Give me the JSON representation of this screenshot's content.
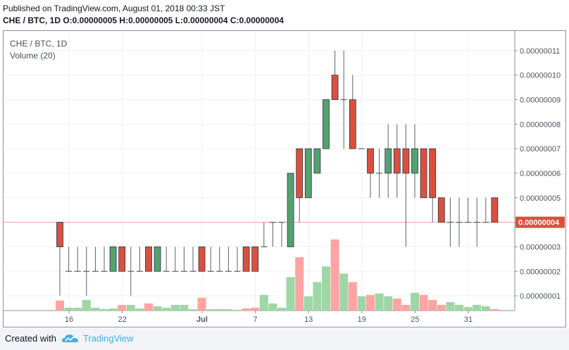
{
  "header": {
    "published": "Published on TradingView.com, August 01, 2018 00:33 JST",
    "ohlc": "CHE / BTC, 1D  O:0.00000005 H:0.00000005 L:0.00000004 C:0.00000004"
  },
  "legend": {
    "symbol": "CHE / BTC, 1D",
    "volume": "Volume (20)"
  },
  "footer": {
    "created_with": "Created with",
    "brand": "TradingView"
  },
  "colors": {
    "up": "#53a26f",
    "down": "#d9503f",
    "up_volume": "#9fd6a5",
    "down_volume": "#ffa3a3",
    "price_line": "#f0a0a0",
    "brand": "#3bb3e4"
  },
  "chart_data": {
    "type": "candlestick",
    "x_tick_labels": [
      "16",
      "22",
      "Jul",
      "7",
      "13",
      "19",
      "25",
      "31"
    ],
    "y_tick_labels": [
      "0.00000001",
      "0.00000002",
      "0.00000003",
      "0.00000004",
      "0.00000005",
      "0.00000006",
      "0.00000007",
      "0.00000008",
      "0.00000009",
      "0.00000010",
      "0.00000011"
    ],
    "y_ticks": [
      1,
      2,
      3,
      4,
      5,
      6,
      7,
      8,
      9,
      10,
      11
    ],
    "ylim": [
      0.4,
      11.8
    ],
    "unit_scale": 1e-08,
    "last_price": 4,
    "last_price_label": "0.00000004",
    "volume_max": 100,
    "candles": [
      {
        "o": 4,
        "h": 4,
        "l": 1,
        "c": 3,
        "v": 14
      },
      {
        "o": 2,
        "h": 3,
        "l": 2,
        "c": 2,
        "v": 4
      },
      {
        "o": 2,
        "h": 3,
        "l": 2,
        "c": 2,
        "v": 4
      },
      {
        "o": 2,
        "h": 3,
        "l": 1,
        "c": 2,
        "v": 15
      },
      {
        "o": 2,
        "h": 3,
        "l": 2,
        "c": 2,
        "v": 4
      },
      {
        "o": 2,
        "h": 3,
        "l": 2,
        "c": 2,
        "v": 2
      },
      {
        "o": 2,
        "h": 3,
        "l": 2,
        "c": 3,
        "v": 3
      },
      {
        "o": 3,
        "h": 3,
        "l": 2,
        "c": 2,
        "v": 8
      },
      {
        "o": 2,
        "h": 3,
        "l": 1,
        "c": 2,
        "v": 8
      },
      {
        "o": 2,
        "h": 3,
        "l": 2,
        "c": 2,
        "v": 3
      },
      {
        "o": 3,
        "h": 3,
        "l": 2,
        "c": 2,
        "v": 10
      },
      {
        "o": 2,
        "h": 3,
        "l": 2,
        "c": 3,
        "v": 6
      },
      {
        "o": 2,
        "h": 3,
        "l": 2,
        "c": 2,
        "v": 4
      },
      {
        "o": 2,
        "h": 3,
        "l": 2,
        "c": 2,
        "v": 8
      },
      {
        "o": 2,
        "h": 3,
        "l": 2,
        "c": 2,
        "v": 8
      },
      {
        "o": 2,
        "h": 3,
        "l": 2,
        "c": 2,
        "v": 2
      },
      {
        "o": 3,
        "h": 3,
        "l": 2,
        "c": 2,
        "v": 18
      },
      {
        "o": 2,
        "h": 3,
        "l": 2,
        "c": 2,
        "v": 2
      },
      {
        "o": 2,
        "h": 3,
        "l": 2,
        "c": 2,
        "v": 2
      },
      {
        "o": 2,
        "h": 3,
        "l": 2,
        "c": 2,
        "v": 2
      },
      {
        "o": 2,
        "h": 3,
        "l": 2,
        "c": 2,
        "v": 1
      },
      {
        "o": 3,
        "h": 3,
        "l": 2,
        "c": 2,
        "v": 3
      },
      {
        "o": 3,
        "h": 3,
        "l": 2,
        "c": 2,
        "v": 4
      },
      {
        "o": 3,
        "h": 4,
        "l": 3,
        "c": 3,
        "v": 22
      },
      {
        "o": 4,
        "h": 4,
        "l": 3,
        "c": 4,
        "v": 10
      },
      {
        "o": 4,
        "h": 4,
        "l": 3,
        "c": 4,
        "v": 4
      },
      {
        "o": 3,
        "h": 6,
        "l": 3,
        "c": 6,
        "v": 47
      },
      {
        "o": 7,
        "h": 7,
        "l": 4,
        "c": 5,
        "v": 75
      },
      {
        "o": 5,
        "h": 7,
        "l": 5,
        "c": 7,
        "v": 20
      },
      {
        "o": 6,
        "h": 7,
        "l": 6,
        "c": 7,
        "v": 40
      },
      {
        "o": 7,
        "h": 9,
        "l": 7,
        "c": 9,
        "v": 62
      },
      {
        "o": 10,
        "h": 11,
        "l": 9,
        "c": 9,
        "v": 100
      },
      {
        "o": 9,
        "h": 11,
        "l": 7,
        "c": 9,
        "v": 52
      },
      {
        "o": 9,
        "h": 10,
        "l": 7,
        "c": 7,
        "v": 40
      },
      {
        "o": 7,
        "h": 7,
        "l": 7,
        "c": 7,
        "v": 20
      },
      {
        "o": 7,
        "h": 7,
        "l": 5,
        "c": 6,
        "v": 22
      },
      {
        "o": 6,
        "h": 7,
        "l": 5,
        "c": 6,
        "v": 24
      },
      {
        "o": 6,
        "h": 8,
        "l": 5,
        "c": 7,
        "v": 20
      },
      {
        "o": 7,
        "h": 8,
        "l": 5,
        "c": 6,
        "v": 17
      },
      {
        "o": 7,
        "h": 8,
        "l": 3,
        "c": 6,
        "v": 8
      },
      {
        "o": 6,
        "h": 8,
        "l": 5,
        "c": 7,
        "v": 25
      },
      {
        "o": 7,
        "h": 7,
        "l": 5,
        "c": 5,
        "v": 22
      },
      {
        "o": 7,
        "h": 7,
        "l": 4,
        "c": 5,
        "v": 15
      },
      {
        "o": 5,
        "h": 5,
        "l": 4,
        "c": 4,
        "v": 8
      },
      {
        "o": 4,
        "h": 5,
        "l": 3,
        "c": 4,
        "v": 12
      },
      {
        "o": 4,
        "h": 5,
        "l": 3,
        "c": 4,
        "v": 8
      },
      {
        "o": 4,
        "h": 5,
        "l": 4,
        "c": 4,
        "v": 5
      },
      {
        "o": 4,
        "h": 5,
        "l": 3,
        "c": 4,
        "v": 8
      },
      {
        "o": 4,
        "h": 5,
        "l": 4,
        "c": 4,
        "v": 6
      },
      {
        "o": 5,
        "h": 5,
        "l": 4,
        "c": 4,
        "v": 2
      }
    ]
  }
}
